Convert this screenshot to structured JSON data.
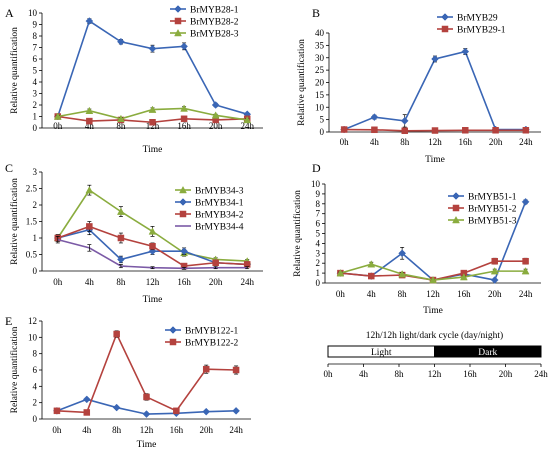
{
  "chart_data": [
    {
      "type": "line",
      "panel": "A",
      "x": [
        "0h",
        "4h",
        "8h",
        "12h",
        "16h",
        "20h",
        "24h"
      ],
      "xlabel": "Time",
      "ylabel": "Relative quantification",
      "ylim": [
        0,
        10
      ],
      "yticks": [
        "0",
        "1",
        "2",
        "3",
        "4",
        "5",
        "6",
        "7",
        "8",
        "9",
        "10"
      ],
      "legend_position": "top-right",
      "series": [
        {
          "name": "BrMYB28-1",
          "color": "#3a66b5",
          "marker": "diamond",
          "values": [
            1.0,
            9.3,
            7.5,
            6.9,
            7.1,
            2.0,
            1.2
          ],
          "errors": [
            0.1,
            0.2,
            0.2,
            0.3,
            0.3,
            0.15,
            0.1
          ]
        },
        {
          "name": "BrMYB28-2",
          "color": "#b4423e",
          "marker": "square",
          "values": [
            1.0,
            0.6,
            0.7,
            0.5,
            0.8,
            0.7,
            0.8
          ],
          "errors": [
            0.05,
            0.05,
            0.05,
            0.05,
            0.05,
            0.05,
            0.05
          ]
        },
        {
          "name": "BrMYB28-3",
          "color": "#8aac3e",
          "marker": "triangle",
          "values": [
            1.0,
            1.5,
            0.8,
            1.6,
            1.7,
            1.1,
            0.7
          ],
          "errors": [
            0.1,
            0.15,
            0.1,
            0.15,
            0.15,
            0.1,
            0.1
          ]
        }
      ]
    },
    {
      "type": "line",
      "panel": "B",
      "x": [
        "0h",
        "4h",
        "8h",
        "12h",
        "16h",
        "20h",
        "24h"
      ],
      "xlabel": "Time",
      "ylabel": "Relative quantification",
      "ylim": [
        0,
        40
      ],
      "yticks": [
        "0",
        "5",
        "10",
        "15",
        "20",
        "25",
        "30",
        "35",
        "40"
      ],
      "legend_position": "top-right",
      "series": [
        {
          "name": "BrMYB29",
          "color": "#3a66b5",
          "marker": "diamond",
          "values": [
            1.0,
            6.0,
            4.5,
            29.5,
            32.5,
            1.0,
            1.0
          ],
          "errors": [
            0.3,
            0.8,
            2.5,
            1.2,
            1.2,
            0.2,
            0.2
          ]
        },
        {
          "name": "BrMYB29-1",
          "color": "#b4423e",
          "marker": "square",
          "values": [
            1.0,
            0.9,
            0.5,
            0.6,
            0.7,
            0.7,
            0.7
          ],
          "errors": [
            0.1,
            0.1,
            0.1,
            0.1,
            0.1,
            0.1,
            0.1
          ]
        }
      ]
    },
    {
      "type": "line",
      "panel": "C",
      "x": [
        "0h",
        "4h",
        "8h",
        "12h",
        "16h",
        "20h",
        "24h"
      ],
      "xlabel": "Time",
      "ylabel": "Relative quantification",
      "ylim": [
        0,
        3
      ],
      "yticks": [
        "0",
        "0.5",
        "1",
        "1.5",
        "2",
        "2.5",
        "3"
      ],
      "legend_position": "top-right",
      "series": [
        {
          "name": "BrMYB34-3",
          "color": "#8aac3e",
          "marker": "triangle",
          "values": [
            1.0,
            2.45,
            1.8,
            1.2,
            0.55,
            0.35,
            0.3
          ],
          "errors": [
            0.1,
            0.15,
            0.15,
            0.15,
            0.1,
            0.05,
            0.05
          ]
        },
        {
          "name": "BrMYB34-1",
          "color": "#3a66b5",
          "marker": "diamond",
          "values": [
            1.0,
            1.25,
            0.35,
            0.6,
            0.6,
            0.25,
            0.2
          ],
          "errors": [
            0.1,
            0.15,
            0.1,
            0.1,
            0.1,
            0.05,
            0.05
          ]
        },
        {
          "name": "BrMYB34-2",
          "color": "#b4423e",
          "marker": "square",
          "values": [
            1.0,
            1.35,
            1.0,
            0.75,
            0.15,
            0.25,
            0.2
          ],
          "errors": [
            0.1,
            0.15,
            0.15,
            0.1,
            0.05,
            0.05,
            0.05
          ]
        },
        {
          "name": "BrMYB34-4",
          "color": "#7b5aa6",
          "marker": "none",
          "values": [
            0.95,
            0.7,
            0.15,
            0.1,
            0.08,
            0.1,
            0.1
          ],
          "errors": [
            0.1,
            0.1,
            0.05,
            0.03,
            0.03,
            0.03,
            0.03
          ]
        }
      ]
    },
    {
      "type": "line",
      "panel": "D",
      "x": [
        "0h",
        "4h",
        "8h",
        "12h",
        "16h",
        "20h",
        "24h"
      ],
      "xlabel": "Time",
      "ylabel": "Relative quantification",
      "ylim": [
        0,
        10
      ],
      "yticks": [
        "0",
        "1",
        "2",
        "3",
        "4",
        "5",
        "6",
        "7",
        "8",
        "9",
        "10"
      ],
      "legend_position": "top-right",
      "series": [
        {
          "name": "BrMYB51-1",
          "color": "#3a66b5",
          "marker": "diamond",
          "values": [
            1.0,
            0.7,
            3.0,
            0.3,
            0.9,
            0.3,
            8.2
          ],
          "errors": [
            0.1,
            0.1,
            0.6,
            0.05,
            0.1,
            0.05,
            0.2
          ]
        },
        {
          "name": "BrMYB51-2",
          "color": "#b4423e",
          "marker": "square",
          "values": [
            1.0,
            0.7,
            0.8,
            0.3,
            1.0,
            2.2,
            2.2
          ],
          "errors": [
            0.1,
            0.1,
            0.1,
            0.05,
            0.2,
            0.3,
            0.3
          ]
        },
        {
          "name": "BrMYB51-3",
          "color": "#8aac3e",
          "marker": "triangle",
          "values": [
            1.0,
            1.9,
            0.9,
            0.3,
            0.6,
            1.2,
            1.2
          ],
          "errors": [
            0.1,
            0.2,
            0.15,
            0.05,
            0.1,
            0.2,
            0.2
          ]
        }
      ]
    },
    {
      "type": "line",
      "panel": "E",
      "x": [
        "0h",
        "4h",
        "8h",
        "12h",
        "16h",
        "20h",
        "24h"
      ],
      "xlabel": "Time",
      "ylabel": "Relative quantification",
      "ylim": [
        0,
        12
      ],
      "yticks": [
        "0",
        "2",
        "4",
        "6",
        "8",
        "10",
        "12"
      ],
      "legend_position": "top-right",
      "series": [
        {
          "name": "BrMYB122-1",
          "color": "#3a66b5",
          "marker": "diamond",
          "values": [
            1.0,
            2.4,
            1.4,
            0.6,
            0.7,
            0.9,
            1.0
          ],
          "errors": [
            0.1,
            0.15,
            0.1,
            0.1,
            0.1,
            0.1,
            0.1
          ]
        },
        {
          "name": "BrMYB122-2",
          "color": "#b4423e",
          "marker": "square",
          "values": [
            1.0,
            0.8,
            10.4,
            2.7,
            1.0,
            6.1,
            6.0
          ],
          "errors": [
            0.1,
            0.1,
            0.4,
            0.4,
            0.2,
            0.5,
            0.5
          ]
        }
      ]
    }
  ],
  "cycle_diagram": {
    "title": "12h/12h light/dark cycle (day/night)",
    "light_label": "Light",
    "dark_label": "Dark",
    "ticks": [
      "0h",
      "4h",
      "8h",
      "12h",
      "16h",
      "20h",
      "24h"
    ]
  }
}
